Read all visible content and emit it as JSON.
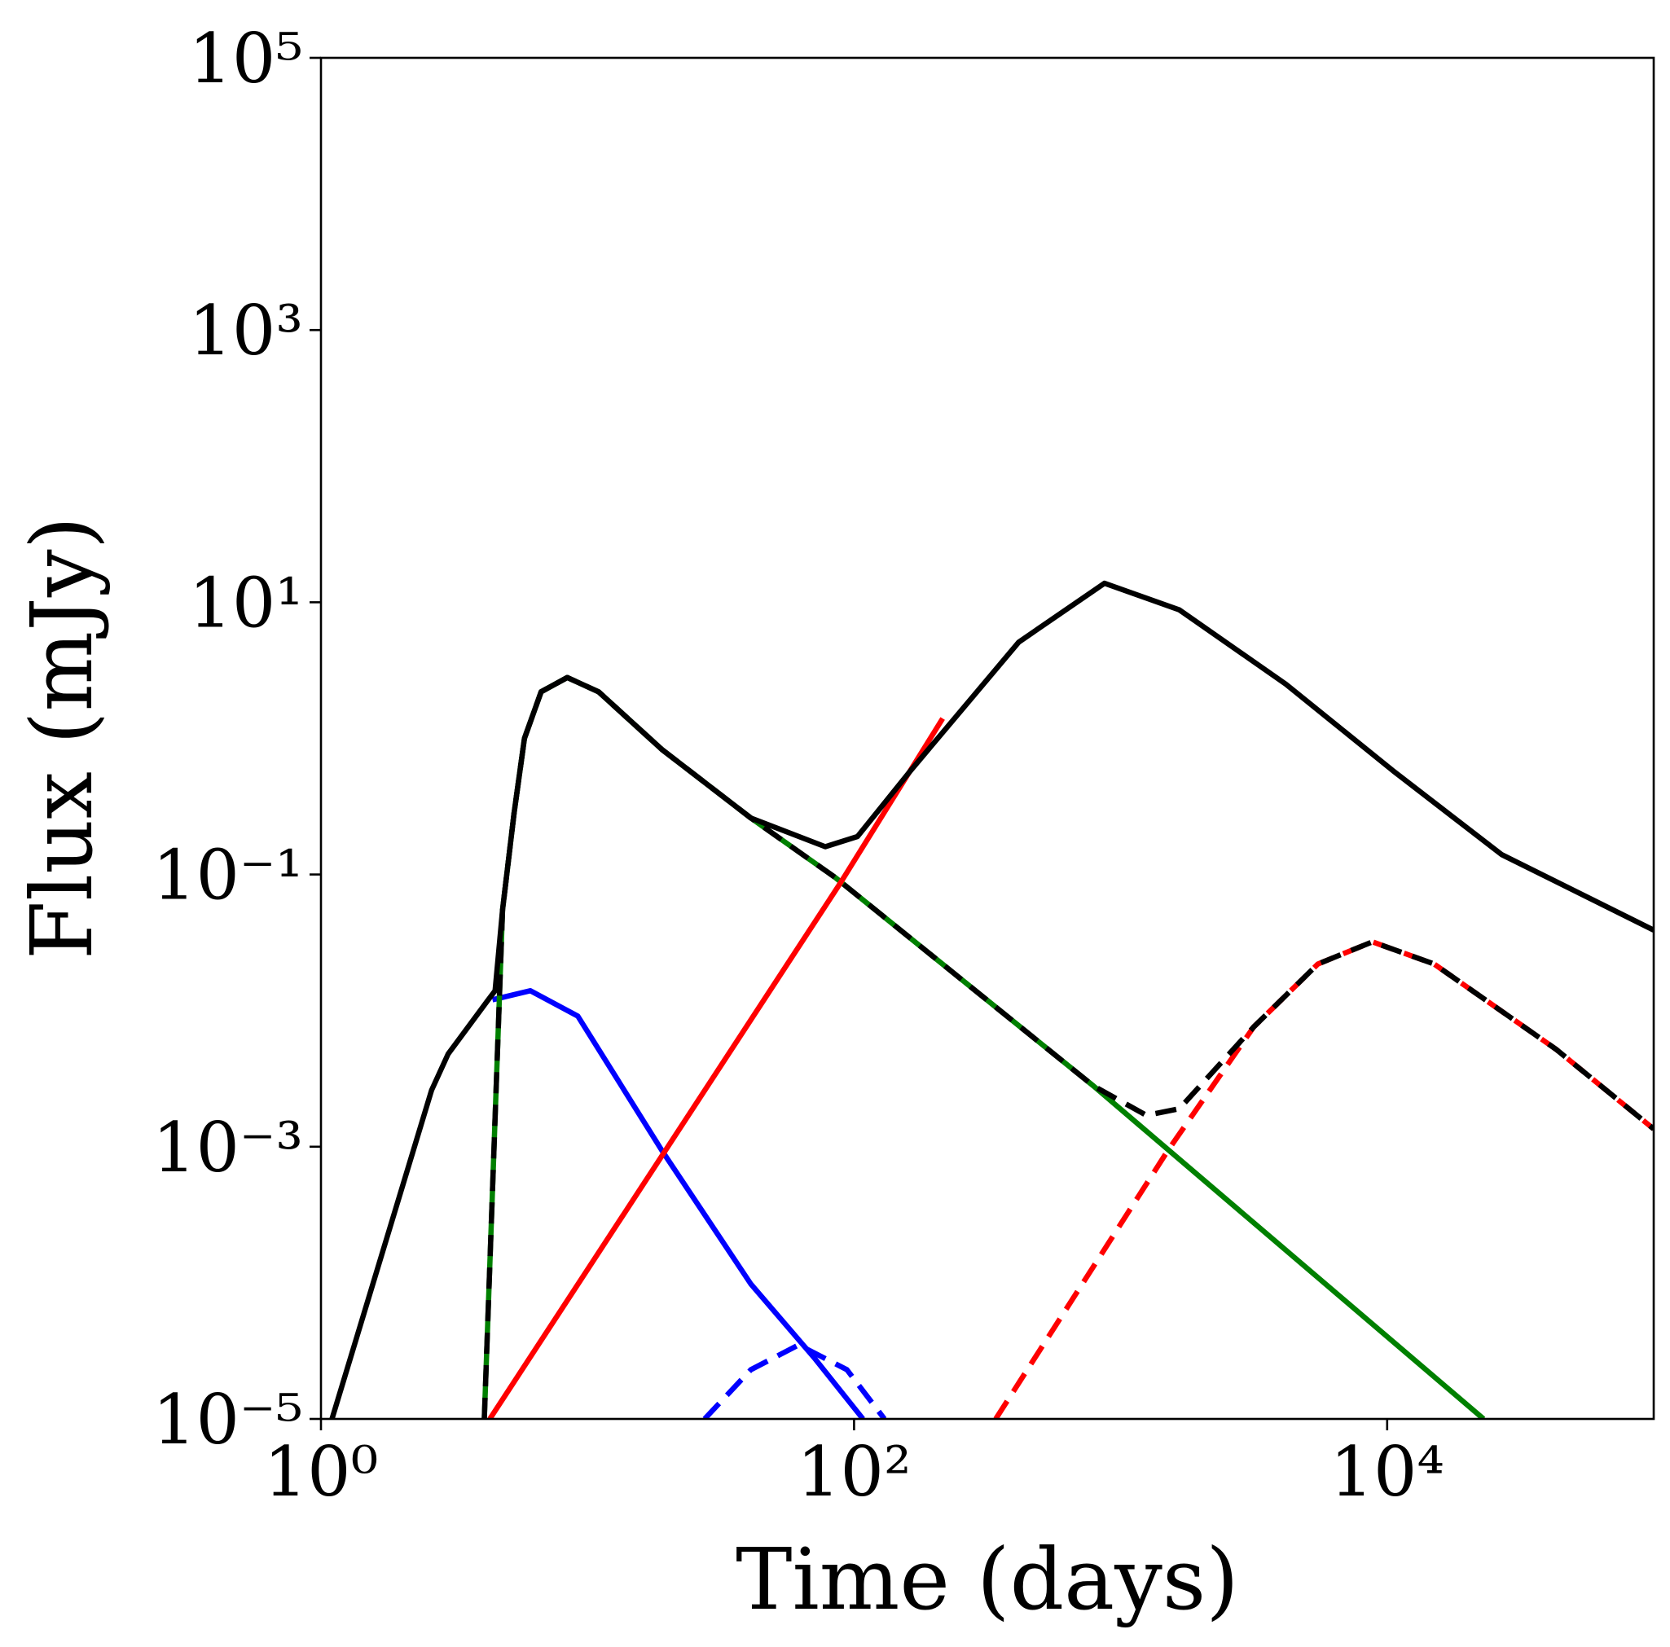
{
  "chart_data": {
    "type": "line",
    "xlabel": "Time (days)",
    "ylabel": "Flux (mJy)",
    "xscale": "log",
    "yscale": "log",
    "xlim": [
      1,
      100000
    ],
    "ylim": [
      1e-05,
      100000
    ],
    "xticks": [
      {
        "value": 1,
        "label": "10⁰"
      },
      {
        "value": 100,
        "label": "10²"
      },
      {
        "value": 10000,
        "label": "10⁴"
      }
    ],
    "yticks": [
      {
        "value": 1e-05,
        "label": "10⁻⁵"
      },
      {
        "value": 0.001,
        "label": "10⁻³"
      },
      {
        "value": 0.1,
        "label": "10⁻¹"
      },
      {
        "value": 10,
        "label": "10¹"
      },
      {
        "value": 1000,
        "label": "10³"
      },
      {
        "value": 100000,
        "label": "10⁵"
      }
    ],
    "series": [
      {
        "color": "#0000ff",
        "style": "solid",
        "x": [
          4.4,
          6.1,
          9.2,
          19,
          41,
          71,
          108
        ],
        "values": [
          0.012,
          0.014,
          0.0091,
          0.00094,
          9.8e-05,
          2.8e-05,
          1e-05
        ]
      },
      {
        "color": "#0000ff",
        "style": "dashed",
        "x": [
          27.5,
          41,
          62,
          94,
          130
        ],
        "values": [
          1e-05,
          2.3e-05,
          3.5e-05,
          2.3e-05,
          1e-05
        ]
      },
      {
        "color": "#008000",
        "style": "solid",
        "x": [
          4.1,
          4.8,
          5.3,
          5.8,
          6.7,
          8.4,
          11,
          19,
          41,
          85,
          790,
          23000
        ],
        "values": [
          1e-05,
          0.055,
          0.28,
          1.0,
          2.2,
          2.8,
          2.2,
          0.83,
          0.26,
          0.095,
          0.0028,
          1e-05
        ]
      },
      {
        "color": "#ff0000",
        "style": "solid",
        "x": [
          4.3,
          89,
          215
        ],
        "values": [
          1e-05,
          0.087,
          1.4
        ]
      },
      {
        "color": "#000000",
        "style": "solid",
        "x": [
          1.1,
          2.6,
          3.0,
          4.2,
          4.5,
          4.8,
          5.3,
          5.8,
          6.7,
          8.4,
          11,
          19,
          41,
          78,
          103,
          163,
          415,
          870,
          1660,
          4170,
          10500,
          26900,
          100000
        ],
        "values": [
          1e-05,
          0.0026,
          0.0048,
          0.0117,
          0.014,
          0.055,
          0.28,
          1.0,
          2.2,
          2.8,
          2.2,
          0.83,
          0.26,
          0.16,
          0.19,
          0.58,
          5.1,
          13.8,
          8.8,
          2.5,
          0.58,
          0.14,
          0.039
        ]
      },
      {
        "color": "#ff0000",
        "style": "dashed",
        "x": [
          340,
          1500,
          3160,
          5500,
          8800,
          15000,
          43000,
          100000
        ],
        "values": [
          1e-05,
          0.00093,
          0.0076,
          0.022,
          0.032,
          0.022,
          0.0052,
          0.00135
        ]
      },
      {
        "color": "#000000",
        "style": "dashed",
        "x": [
          4.1,
          4.8,
          5.3,
          5.8,
          6.7,
          8.4,
          11,
          19,
          41,
          85,
          790,
          1250,
          1660,
          3160,
          5500,
          8800,
          15000,
          43000,
          100000
        ],
        "values": [
          1e-05,
          0.055,
          0.28,
          1.0,
          2.2,
          2.8,
          2.2,
          0.83,
          0.26,
          0.095,
          0.0028,
          0.0017,
          0.0019,
          0.0076,
          0.022,
          0.032,
          0.022,
          0.0052,
          0.00135
        ]
      }
    ]
  }
}
